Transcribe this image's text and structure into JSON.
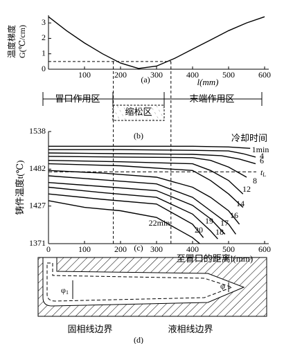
{
  "chart_data": [
    {
      "type": "line",
      "panel": "(a)",
      "ylabel": [
        "温度梯度",
        "G(℃/cm)"
      ],
      "xlabel": "l(mm)",
      "x": [
        0,
        50,
        100,
        150,
        200,
        250,
        300,
        350,
        400,
        450,
        500,
        550,
        600
      ],
      "values": [
        3.4,
        2.5,
        1.7,
        1.0,
        0.4,
        0.05,
        0.2,
        0.7,
        1.3,
        1.9,
        2.5,
        3.0,
        3.4
      ],
      "xlim": [
        0,
        600
      ],
      "xticks": [
        100,
        200,
        300,
        400,
        500,
        600
      ],
      "ylim": [
        0,
        3.5
      ],
      "yticks": [
        0,
        1,
        2,
        3
      ],
      "dashed_x": [
        180,
        340
      ],
      "dashed_y": 0.5,
      "color": "#000"
    },
    {
      "type": "line",
      "panel": "(c)",
      "ylabel": "铸件温度t(℃)",
      "xlabel": "至冒口的距离l(mm)",
      "legend_title": "冷却时间",
      "xlim": [
        0,
        600
      ],
      "xticks": [
        0,
        100,
        200,
        300,
        400,
        500,
        600
      ],
      "ylim": [
        1371,
        1538
      ],
      "yticks": [
        1371,
        1427,
        1482,
        1538
      ],
      "liquidus": {
        "value": 1478,
        "label": "t",
        "sub": "L"
      },
      "series": [
        {
          "name": "1min",
          "x": [
            0,
            200,
            400,
            500,
            560
          ],
          "values": [
            1516,
            1516,
            1516,
            1515,
            1513
          ]
        },
        {
          "name": "4",
          "x": [
            0,
            200,
            400,
            500,
            540,
            575
          ],
          "values": [
            1511,
            1511,
            1510,
            1509,
            1505,
            1500
          ]
        },
        {
          "name": "6",
          "x": [
            0,
            200,
            400,
            480,
            530,
            575
          ],
          "values": [
            1506,
            1505,
            1504,
            1502,
            1497,
            1490
          ]
        },
        {
          "name": "8",
          "x": [
            0,
            200,
            400,
            450,
            500,
            550
          ],
          "values": [
            1501,
            1500,
            1499,
            1495,
            1485,
            1470
          ]
        },
        {
          "name": "12",
          "x": [
            0,
            200,
            400,
            450,
            500,
            540
          ],
          "values": [
            1495,
            1493,
            1490,
            1480,
            1465,
            1445
          ]
        },
        {
          "name": "14",
          "x": [
            0,
            200,
            400,
            450,
            500,
            540
          ],
          "values": [
            1490,
            1487,
            1480,
            1465,
            1445,
            1425
          ]
        },
        {
          "name": "16",
          "x": [
            0,
            150,
            300,
            400,
            450,
            500,
            530
          ],
          "values": [
            1480,
            1476,
            1470,
            1455,
            1440,
            1420,
            1400
          ]
        },
        {
          "name": "17",
          "x": [
            0,
            150,
            300,
            400,
            450,
            500,
            520
          ],
          "values": [
            1472,
            1466,
            1460,
            1440,
            1420,
            1400,
            1385
          ]
        },
        {
          "name": "18",
          "x": [
            0,
            150,
            300,
            400,
            450,
            490
          ],
          "values": [
            1462,
            1456,
            1450,
            1428,
            1408,
            1385
          ]
        },
        {
          "name": "19",
          "x": [
            0,
            150,
            300,
            400,
            450,
            470
          ],
          "values": [
            1455,
            1447,
            1440,
            1415,
            1390,
            1378
          ]
        },
        {
          "name": "20",
          "x": [
            0,
            150,
            300,
            400,
            430
          ],
          "values": [
            1445,
            1437,
            1430,
            1400,
            1380
          ]
        },
        {
          "name": "22min",
          "x": [
            0,
            100,
            200,
            300,
            400,
            420
          ],
          "values": [
            1435,
            1425,
            1420,
            1410,
            1380,
            1371
          ]
        }
      ]
    }
  ],
  "panel_b": {
    "left": "冒口作用区",
    "middle": "缩松区",
    "right": "末端作用区",
    "label": "(b)"
  },
  "panel_d": {
    "phi1": "φ",
    "phi1_sub": "1",
    "phi": "φ",
    "solidus": "固相线边界",
    "liquidus": "液相线边界",
    "label": "(d)"
  }
}
